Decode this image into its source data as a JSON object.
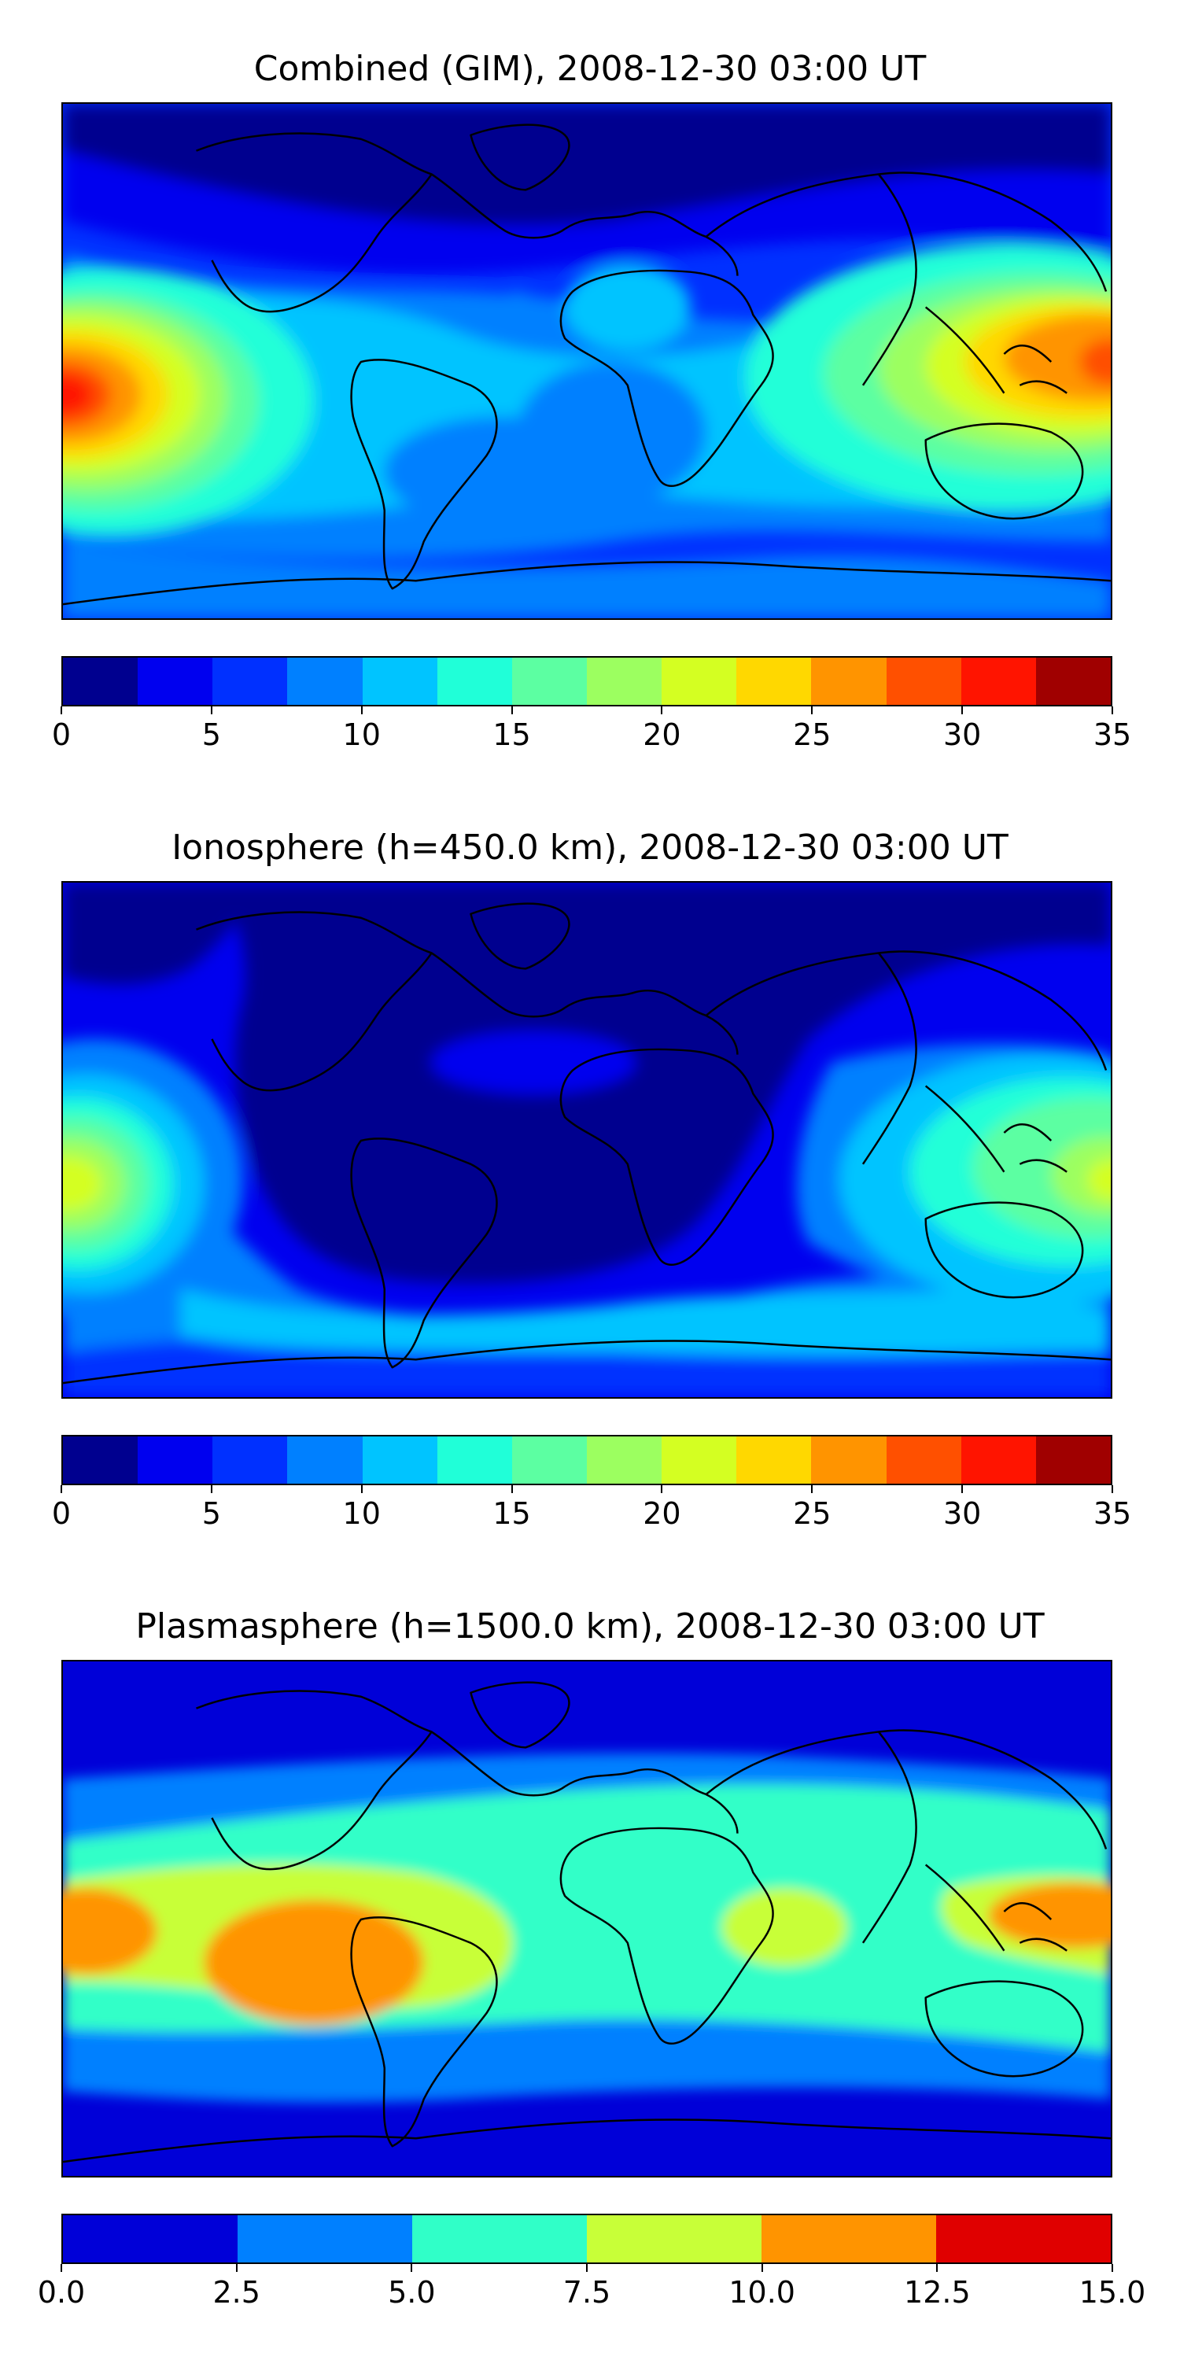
{
  "panels": [
    {
      "title": "Combined (GIM), 2008-12-30 03:00 UT",
      "colorbar": {
        "colors": [
          "#00008f",
          "#0000ef",
          "#0030ff",
          "#0080ff",
          "#00c4ff",
          "#20ffd8",
          "#5cffa2",
          "#9cff60",
          "#d4ff22",
          "#ffd800",
          "#ff9400",
          "#ff5000",
          "#ff1400",
          "#a00000"
        ],
        "ticks": [
          "0",
          "5",
          "10",
          "15",
          "20",
          "25",
          "30",
          "35"
        ],
        "min": 0,
        "max": 35
      }
    },
    {
      "title": "Ionosphere  (h=450.0 km), 2008-12-30 03:00 UT",
      "colorbar": {
        "colors": [
          "#00008f",
          "#0000ef",
          "#0030ff",
          "#0080ff",
          "#00c4ff",
          "#20ffd8",
          "#5cffa2",
          "#9cff60",
          "#d4ff22",
          "#ffd800",
          "#ff9400",
          "#ff5000",
          "#ff1400",
          "#a00000"
        ],
        "ticks": [
          "0",
          "5",
          "10",
          "15",
          "20",
          "25",
          "30",
          "35"
        ],
        "min": 0,
        "max": 35
      }
    },
    {
      "title": "Plasmasphere (h=1500.0 km), 2008-12-30 03:00 UT",
      "colorbar": {
        "colors": [
          "#0000d8",
          "#0080ff",
          "#30ffc8",
          "#c8ff38",
          "#ff9400",
          "#e00000"
        ],
        "ticks": [
          "0.0",
          "2.5",
          "5.0",
          "7.5",
          "10.0",
          "12.5",
          "15.0"
        ],
        "min": 0,
        "max": 15
      }
    }
  ]
}
